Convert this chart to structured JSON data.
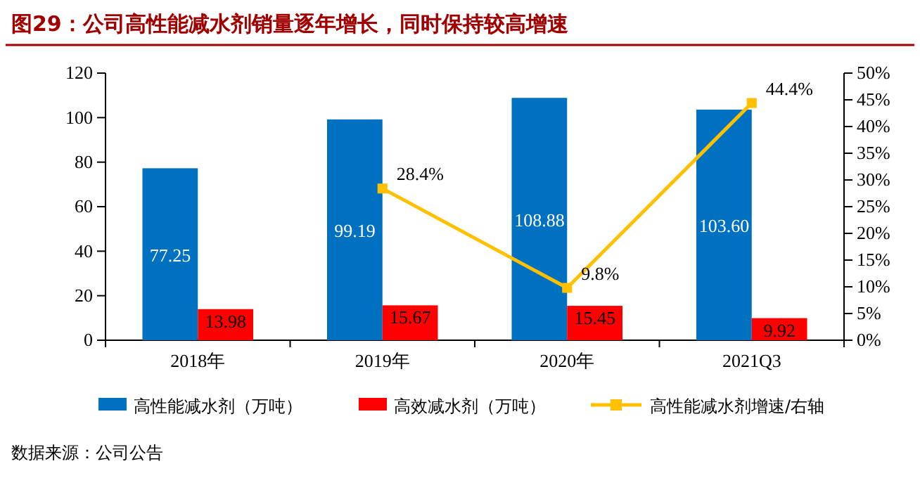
{
  "chart_data": {
    "type": "bar",
    "title": "图29：公司高性能减水剂销量逐年增长，同时保持较高增速",
    "categories": [
      "2018年",
      "2019年",
      "2020年",
      "2021Q3"
    ],
    "series": [
      {
        "name": "高性能减水剂（万吨）",
        "color": "#0070c0",
        "values": [
          77.25,
          99.19,
          108.88,
          103.6
        ],
        "value_labels": [
          "77.25",
          "99.19",
          "108.88",
          "103.60"
        ]
      },
      {
        "name": "高效减水剂（万吨）",
        "color": "#ff0000",
        "values": [
          13.98,
          15.67,
          15.45,
          9.92
        ],
        "value_labels": [
          "13.98",
          "15.67",
          "15.45",
          "9.92"
        ]
      },
      {
        "name": "高性能减水剂增速/右轴",
        "color": "#ffc000",
        "type": "line",
        "axis": "y2",
        "values": [
          null,
          28.4,
          9.8,
          44.4
        ],
        "value_labels": [
          null,
          "28.4%",
          "9.8%",
          "44.4%"
        ]
      }
    ],
    "ylim": [
      0,
      120
    ],
    "yticks": [
      0,
      20,
      40,
      60,
      80,
      100,
      120
    ],
    "y2lim": [
      0,
      50
    ],
    "y2ticks": [
      {
        "value": 0,
        "label": "0%"
      },
      {
        "value": 5,
        "label": "5%"
      },
      {
        "value": 10,
        "label": "10%"
      },
      {
        "value": 15,
        "label": "15%"
      },
      {
        "value": 20,
        "label": "20%"
      },
      {
        "value": 25,
        "label": "25%"
      },
      {
        "value": 30,
        "label": "30%"
      },
      {
        "value": 35,
        "label": "35%"
      },
      {
        "value": 40,
        "label": "40%"
      },
      {
        "value": 45,
        "label": "45%"
      },
      {
        "value": 50,
        "label": "50%"
      }
    ],
    "legend": "bottom",
    "marker": "square",
    "line_style": "solid",
    "annotations": [
      "数据来源：公司公告"
    ]
  }
}
